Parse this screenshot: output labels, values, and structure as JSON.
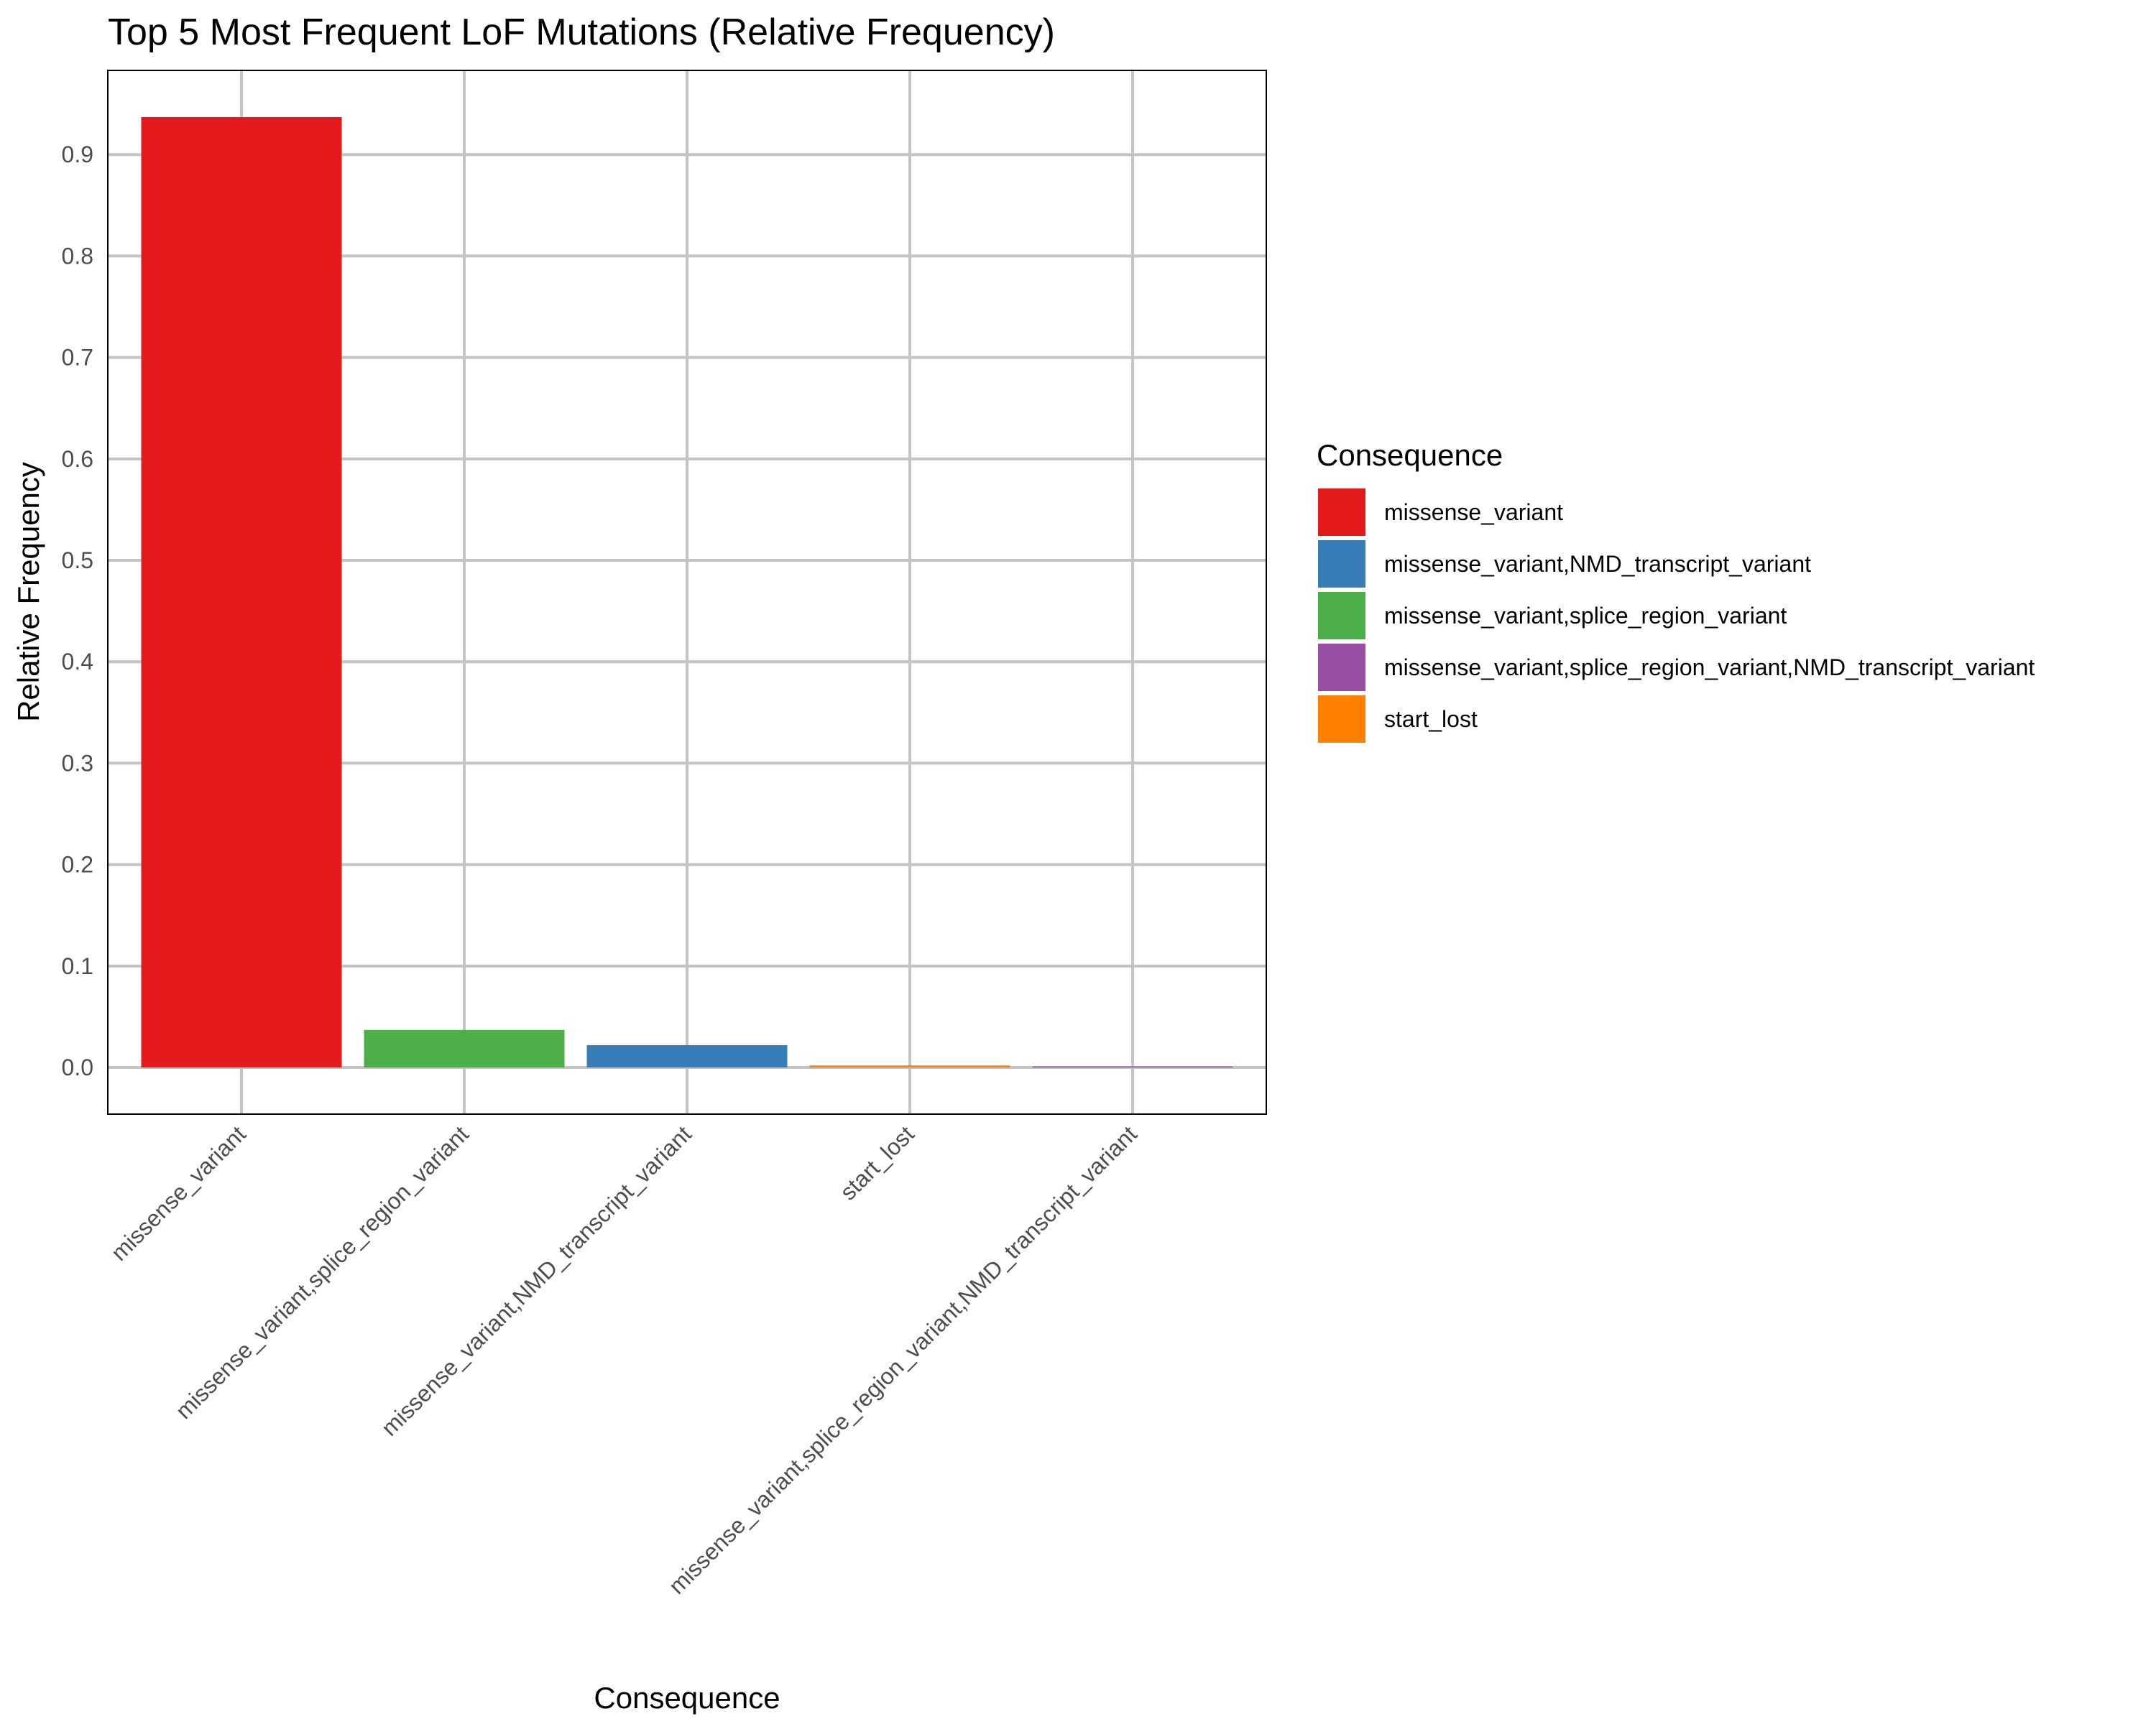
{
  "chart_data": {
    "type": "bar",
    "title": "Top 5 Most Frequent LoF Mutations (Relative Frequency)",
    "xlabel": "Consequence",
    "ylabel": "Relative Frequency",
    "categories": [
      "missense_variant",
      "missense_variant,splice_region_variant",
      "missense_variant,NMD_transcript_variant",
      "start_lost",
      "missense_variant,splice_region_variant,NMD_transcript_variant"
    ],
    "values": [
      0.937,
      0.037,
      0.022,
      0.002,
      0.0005
    ],
    "bar_colors": [
      "#E41A1C",
      "#4DAF4A",
      "#377EB8",
      "#FF7F00",
      "#984EA3"
    ],
    "ylim": [
      -0.046,
      0.983
    ],
    "yticks": [
      0.0,
      0.1,
      0.2,
      0.3,
      0.4,
      0.5,
      0.6,
      0.7,
      0.8,
      0.9
    ],
    "ytick_labels": [
      "0.0",
      "0.1",
      "0.2",
      "0.3",
      "0.4",
      "0.5",
      "0.6",
      "0.7",
      "0.8",
      "0.9"
    ],
    "grid": true,
    "legend": {
      "title": "Consequence",
      "position": "right",
      "entries": [
        {
          "label": "missense_variant",
          "color": "#E41A1C"
        },
        {
          "label": "missense_variant,NMD_transcript_variant",
          "color": "#377EB8"
        },
        {
          "label": "missense_variant,splice_region_variant",
          "color": "#4DAF4A"
        },
        {
          "label": "missense_variant,splice_region_variant,NMD_transcript_variant",
          "color": "#984EA3"
        },
        {
          "label": "start_lost",
          "color": "#FF7F00"
        }
      ]
    }
  }
}
